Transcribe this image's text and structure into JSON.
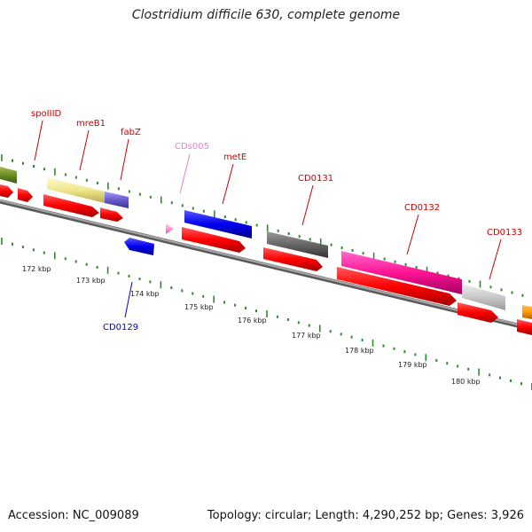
{
  "title": "Clostridium difficile 630, complete genome",
  "footer": {
    "accession": "Accession: NC_009089",
    "summary": "Topology: circular; Length: 4,290,252 bp; Genes: 3,926"
  },
  "scale": {
    "kbp_labels": [
      "172 kbp",
      "173 kbp",
      "174 kbp",
      "175 kbp",
      "176 kbp",
      "177 kbp",
      "178 kbp",
      "179 kbp",
      "180 kbp"
    ]
  },
  "colors": {
    "backbone": "#888888",
    "tick": "#2e8b2e",
    "gene_label": "#cc0000",
    "cds_pink_label": "#ee82c8",
    "cd0129_label": "#0000cc"
  },
  "genes": [
    {
      "label": "spoIIID"
    },
    {
      "label": "mreB1"
    },
    {
      "label": "fabZ"
    },
    {
      "label": "CDs005"
    },
    {
      "label": "metE"
    },
    {
      "label": "CD0131"
    },
    {
      "label": "CD0132"
    },
    {
      "label": "CD0133"
    },
    {
      "label": "CD0129"
    }
  ]
}
